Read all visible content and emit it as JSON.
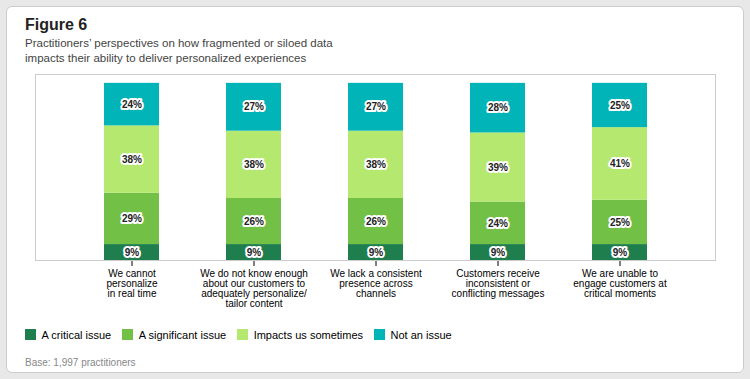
{
  "chart_data": {
    "type": "bar",
    "stacked": true,
    "title": "Figure 6",
    "subtitle": "Practitioners’ perspectives on how fragmented or siloed data\nimpacts their ability to deliver personalized experiences",
    "annotations": [
      "Base: 1,997 practitioners"
    ],
    "categories": [
      "We cannot\npersonalize\nin real time",
      "We do not know enough\nabout our customers to\nadequately personalize/\ntailor content",
      "We lack a consistent\npresence across\nchannels",
      "Customers receive\ninconsistent or\nconflicting messages",
      "We are unable to\nengage customers at\ncritical moments"
    ],
    "series": [
      {
        "name": "A critical issue",
        "color": "#1e7e4e",
        "values": [
          9,
          9,
          9,
          9,
          9
        ],
        "value_labels": [
          "9%",
          "9%",
          "9%",
          "9%",
          "9%"
        ]
      },
      {
        "name": "A significant issue",
        "color": "#72c045",
        "values": [
          29,
          26,
          26,
          24,
          25
        ],
        "value_labels": [
          "29%",
          "26%",
          "26%",
          "24%",
          "25%"
        ]
      },
      {
        "name": "Impacts us sometimes",
        "color": "#b5e86e",
        "values": [
          38,
          38,
          38,
          39,
          41
        ],
        "value_labels": [
          "38%",
          "38%",
          "38%",
          "39%",
          "41%"
        ]
      },
      {
        "name": "Not an issue",
        "color": "#00b4b8",
        "values": [
          24,
          27,
          27,
          28,
          25
        ],
        "value_labels": [
          "24%",
          "27%",
          "27%",
          "28%",
          "25%"
        ]
      }
    ],
    "ylim": [
      0,
      105
    ],
    "yticks": [],
    "tick_labels": "x",
    "data_labels": true,
    "legend": "bottom",
    "grid": false
  }
}
